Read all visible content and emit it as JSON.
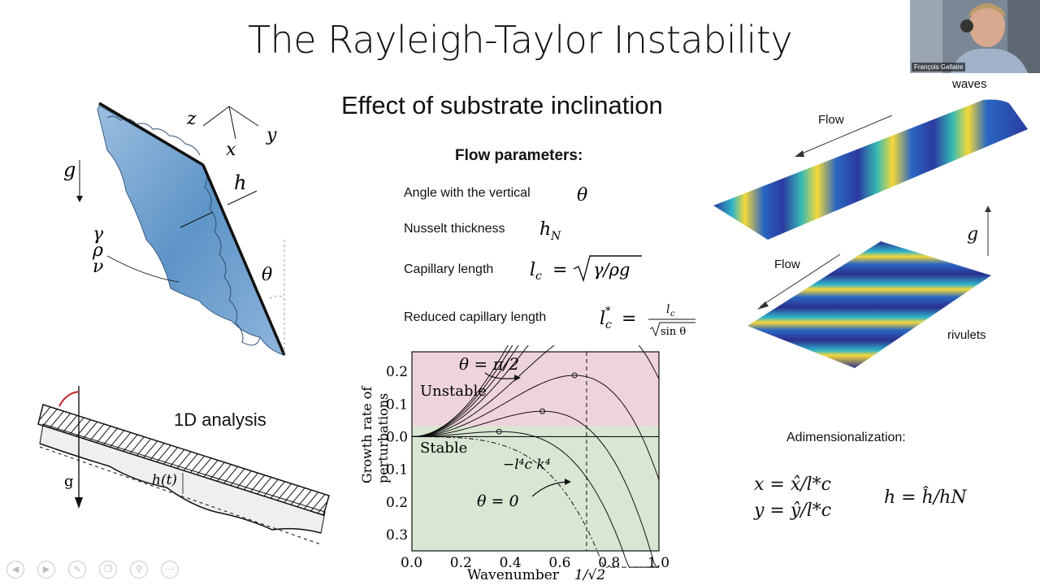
{
  "slide": {
    "title": "The Rayleigh-Taylor Instability",
    "subtitle": "Effect of substrate inclination",
    "flow_params_header": "Flow parameters:",
    "params": [
      {
        "label": "Angle with the vertical",
        "symbol": "θ"
      },
      {
        "label": "Nusselt thickness",
        "symbol": "hN"
      },
      {
        "label": "Capillary length",
        "symbol": "l_c = √(γ/ρg)"
      },
      {
        "label": "Reduced capillary length",
        "symbol": "l*_c = l_c/√(sin θ)"
      }
    ],
    "analysis_label": "1D analysis",
    "adim_label": "Adimensionalization:",
    "adim_eq1": "x = x̂/l*c",
    "adim_eq2": "y = ŷ/l*c",
    "adim_eq3": "h = ĥ/hN",
    "waves_label": "waves",
    "rivulets_label": "rivulets",
    "flow_label": "Flow",
    "g_label": "g"
  },
  "diagram": {
    "axes": {
      "z": "z",
      "x": "x",
      "y": "y"
    },
    "g": "g",
    "h": "h",
    "props": [
      "γ",
      "ρ",
      "ν"
    ],
    "theta": "θ",
    "ht": "h(t)"
  },
  "webcam": {
    "name": "François Gallaire"
  },
  "nav_icons": [
    "back-icon",
    "forward-icon",
    "pen-icon",
    "copy-icon",
    "zoom-icon",
    "more-icon"
  ],
  "chart_data": {
    "type": "line",
    "xlabel": "Wavenumber",
    "x_marker_label": "1/√2",
    "ylabel": "Growth rate of perturbations",
    "xlim": [
      0,
      1.0
    ],
    "ylim": [
      -0.35,
      0.26
    ],
    "x_ticks": [
      "0.0",
      "0.2",
      "0.4",
      "0.6",
      "0.8",
      "1.0"
    ],
    "y_ticks": [
      {
        "value": 0.2,
        "label": "0.2"
      },
      {
        "value": 0.1,
        "label": "0.1"
      },
      {
        "value": 0.0,
        "label": "0.0"
      },
      {
        "value": -0.1,
        "label": "0.1"
      },
      {
        "value": -0.2,
        "label": "0.2"
      },
      {
        "value": -0.3,
        "label": "0.3"
      }
    ],
    "region_unstable": "Unstable",
    "region_stable": "Stable",
    "annotation_top": "θ = π/2",
    "annotation_bottom": "θ = 0",
    "annotation_curve": "−l⁴c k⁴",
    "s_values": [
      0,
      0.15,
      0.3,
      0.45,
      0.6,
      0.75,
      0.85,
      0.93,
      1.0
    ],
    "vline_x": 0.7071,
    "colors": {
      "unstable": "#efd3dc",
      "stable": "#d9e6d2",
      "curve": "#111111"
    }
  }
}
